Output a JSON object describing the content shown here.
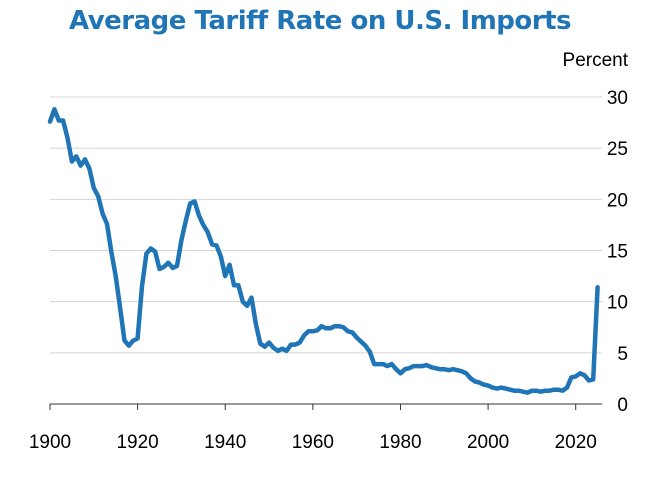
{
  "chart_data": {
    "type": "line",
    "title": "Average Tariff Rate on U.S. Imports",
    "ylabel": "Percent",
    "xlabel": "",
    "xlim": [
      1900,
      2026
    ],
    "ylim": [
      0,
      30
    ],
    "grid": true,
    "x_ticks": [
      1900,
      1920,
      1940,
      1960,
      1980,
      2000,
      2020
    ],
    "y_ticks": [
      0,
      5,
      10,
      15,
      20,
      25,
      30
    ],
    "line_color": "#1f75b5",
    "series": [
      {
        "name": "Average Tariff Rate",
        "x": [
          1900,
          1901,
          1902,
          1903,
          1904,
          1905,
          1906,
          1907,
          1908,
          1909,
          1910,
          1911,
          1912,
          1913,
          1914,
          1915,
          1916,
          1917,
          1918,
          1919,
          1920,
          1921,
          1922,
          1923,
          1924,
          1925,
          1926,
          1927,
          1928,
          1929,
          1930,
          1931,
          1932,
          1933,
          1934,
          1935,
          1936,
          1937,
          1938,
          1939,
          1940,
          1941,
          1942,
          1943,
          1944,
          1945,
          1946,
          1947,
          1948,
          1949,
          1950,
          1951,
          1952,
          1953,
          1954,
          1955,
          1956,
          1957,
          1958,
          1959,
          1960,
          1961,
          1962,
          1963,
          1964,
          1965,
          1966,
          1967,
          1968,
          1969,
          1970,
          1971,
          1972,
          1973,
          1974,
          1975,
          1976,
          1977,
          1978,
          1979,
          1980,
          1981,
          1982,
          1983,
          1984,
          1985,
          1986,
          1987,
          1988,
          1989,
          1990,
          1991,
          1992,
          1993,
          1994,
          1995,
          1996,
          1997,
          1998,
          1999,
          2000,
          2001,
          2002,
          2003,
          2004,
          2005,
          2006,
          2007,
          2008,
          2009,
          2010,
          2011,
          2012,
          2013,
          2014,
          2015,
          2016,
          2017,
          2018,
          2019,
          2020,
          2021,
          2022,
          2023,
          2024,
          2025
        ],
        "values": [
          27.6,
          28.8,
          27.7,
          27.7,
          26.0,
          23.7,
          24.2,
          23.3,
          23.9,
          23.0,
          21.1,
          20.3,
          18.6,
          17.6,
          14.9,
          12.5,
          9.4,
          6.2,
          5.7,
          6.2,
          6.4,
          11.5,
          14.7,
          15.2,
          14.9,
          13.2,
          13.4,
          13.8,
          13.3,
          13.5,
          16.0,
          17.9,
          19.6,
          19.8,
          18.4,
          17.5,
          16.8,
          15.6,
          15.5,
          14.4,
          12.5,
          13.6,
          11.6,
          11.6,
          10.0,
          9.6,
          10.4,
          7.8,
          5.9,
          5.6,
          6.0,
          5.5,
          5.2,
          5.4,
          5.2,
          5.8,
          5.8,
          6.0,
          6.7,
          7.1,
          7.1,
          7.2,
          7.6,
          7.4,
          7.4,
          7.6,
          7.6,
          7.5,
          7.1,
          7.0,
          6.5,
          6.1,
          5.7,
          5.1,
          3.9,
          3.9,
          3.9,
          3.7,
          3.9,
          3.4,
          3.0,
          3.4,
          3.5,
          3.7,
          3.7,
          3.7,
          3.8,
          3.6,
          3.5,
          3.4,
          3.4,
          3.3,
          3.4,
          3.3,
          3.2,
          3.0,
          2.5,
          2.2,
          2.1,
          1.9,
          1.8,
          1.6,
          1.5,
          1.6,
          1.5,
          1.4,
          1.3,
          1.3,
          1.2,
          1.1,
          1.3,
          1.3,
          1.2,
          1.3,
          1.3,
          1.4,
          1.4,
          1.3,
          1.6,
          2.6,
          2.7,
          3.0,
          2.8,
          2.3,
          2.4,
          11.4
        ]
      }
    ]
  }
}
